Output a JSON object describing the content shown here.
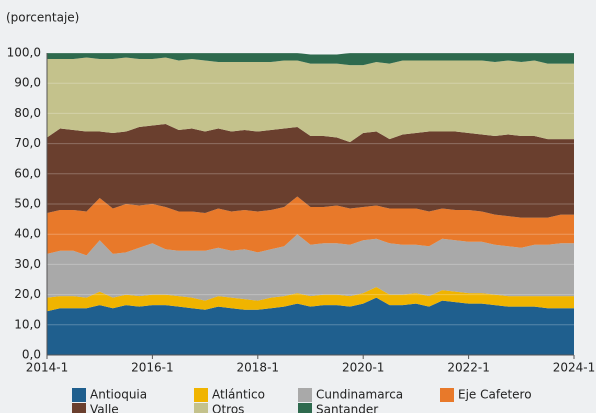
{
  "chart_data": {
    "type": "stacked_area",
    "subtitle": "(porcentaje)",
    "categories": [
      "2014-1",
      null,
      null,
      null,
      null,
      null,
      null,
      null,
      "2016-1",
      null,
      null,
      null,
      null,
      null,
      null,
      null,
      "2018-1",
      null,
      null,
      null,
      null,
      null,
      null,
      null,
      "2020-1",
      null,
      null,
      null,
      null,
      null,
      null,
      null,
      "2022-1",
      null,
      null,
      null,
      null,
      null,
      null,
      null,
      "2024-1"
    ],
    "series": [
      {
        "name": "Antioquia",
        "color": "#1f5f8e",
        "values": [
          14.5,
          15.5,
          15.5,
          15.5,
          16.5,
          15.5,
          16.5,
          16,
          16.5,
          16.5,
          16,
          15.5,
          15,
          16,
          15.5,
          15,
          15,
          15.5,
          16,
          17,
          16,
          16.5,
          16.5,
          16,
          17,
          19,
          16.5,
          16.5,
          17,
          16,
          18,
          17.5,
          17,
          17,
          16.5,
          16,
          16,
          16,
          15.5,
          15.5,
          15.5
        ]
      },
      {
        "name": "Atlántico",
        "color": "#f0b400",
        "values": [
          4.5,
          4,
          4,
          3.5,
          4.5,
          3.5,
          3.5,
          3.5,
          3.5,
          3.5,
          3.5,
          3.5,
          3,
          3.5,
          3.5,
          3.5,
          3,
          3.5,
          3.5,
          3.5,
          3.5,
          3.5,
          3.5,
          3.5,
          3.5,
          3.5,
          3.5,
          3.5,
          3.5,
          3.5,
          3.5,
          3.5,
          3.5,
          3.5,
          3.5,
          3.5,
          3.5,
          3.5,
          4,
          4,
          4
        ]
      },
      {
        "name": "Cundinamarca",
        "color": "#a9a9a9",
        "values": [
          14.5,
          15,
          15,
          14,
          17,
          14.5,
          14,
          16,
          17,
          15,
          15,
          15.5,
          16.5,
          16,
          15.5,
          16.5,
          16,
          16,
          16.5,
          19.5,
          17,
          17,
          17,
          17,
          17.5,
          16,
          17,
          16.5,
          16,
          16.5,
          17,
          17,
          17,
          17,
          16.5,
          16.5,
          16,
          17,
          17,
          17.5,
          17.5
        ]
      },
      {
        "name": "Eje Cafetero",
        "color": "#e8792a",
        "values": [
          13.5,
          13.5,
          13.5,
          14.5,
          14,
          15,
          16,
          14,
          13,
          14,
          13,
          13,
          12.5,
          13,
          13,
          13,
          13.5,
          13,
          13,
          12.5,
          12.5,
          12,
          12.5,
          12,
          11,
          11,
          11.5,
          12,
          12,
          11.5,
          10,
          10,
          10.5,
          10,
          10,
          10,
          10,
          9,
          9,
          9.5,
          9.5
        ]
      },
      {
        "name": "Valle",
        "color": "#6a3f2e",
        "values": [
          25,
          27,
          26.5,
          26.5,
          22,
          25,
          24,
          26,
          26,
          27.5,
          27,
          27.5,
          27,
          26.5,
          26.5,
          26.5,
          26.5,
          26.5,
          26,
          23,
          23.5,
          23.5,
          22.5,
          22,
          24.5,
          24.5,
          23,
          24.5,
          25,
          26.5,
          25.5,
          26,
          25.5,
          25.5,
          26,
          27,
          27,
          27,
          26,
          25,
          25
        ]
      },
      {
        "name": "Otros",
        "color": "#c4c28c",
        "values": [
          26,
          23,
          23.5,
          24.5,
          24,
          24.5,
          24.5,
          22.5,
          22,
          22,
          23,
          23,
          23.5,
          22,
          23,
          22.5,
          23,
          22.5,
          22.5,
          22,
          24,
          24,
          24.5,
          25.5,
          22.5,
          23,
          25,
          24.5,
          24,
          23.5,
          23.5,
          23.5,
          24,
          24.5,
          24.5,
          24.5,
          24.5,
          25,
          25,
          25,
          25
        ]
      },
      {
        "name": "Santander",
        "color": "#2e6a4e",
        "values": [
          2,
          2,
          2,
          1.5,
          2,
          2,
          1.5,
          2,
          2,
          1.5,
          2.5,
          2,
          2.5,
          3,
          3,
          3,
          3,
          3,
          2.5,
          2.5,
          3,
          3,
          3,
          4,
          4,
          3,
          3.5,
          2.5,
          2.5,
          2.5,
          2.5,
          2.5,
          2.5,
          2.5,
          3,
          2.5,
          3,
          2.5,
          3.5,
          3.5,
          3.5
        ]
      }
    ],
    "ylim": [
      0,
      100
    ],
    "yticks": [
      {
        "value": 0,
        "label": "0,0"
      },
      {
        "value": 10,
        "label": "10,0"
      },
      {
        "value": 20,
        "label": "20,0"
      },
      {
        "value": 30,
        "label": "30,0"
      },
      {
        "value": 40,
        "label": "40,0"
      },
      {
        "value": 50,
        "label": "50,0"
      },
      {
        "value": 60,
        "label": "60,0"
      },
      {
        "value": 70,
        "label": "70,0"
      },
      {
        "value": 80,
        "label": "80,0"
      },
      {
        "value": 90,
        "label": "90,0"
      },
      {
        "value": 100,
        "label": "100,0"
      }
    ],
    "grid": true
  }
}
